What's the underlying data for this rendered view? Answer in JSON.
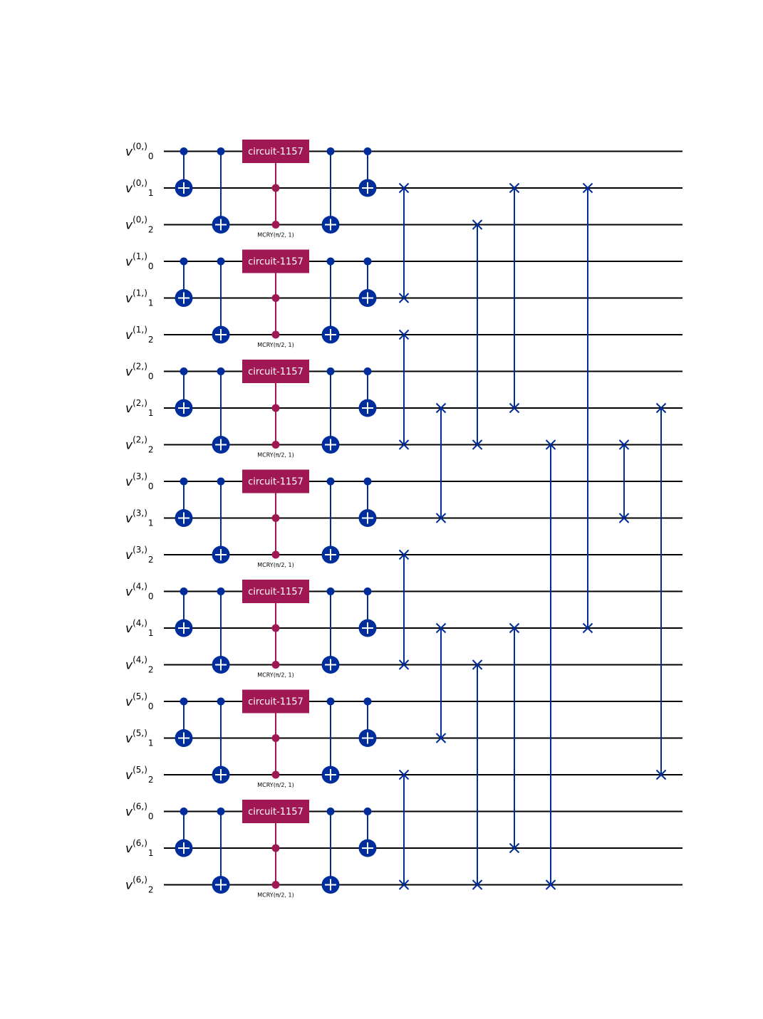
{
  "circuit": {
    "colors": {
      "wire": "#000000",
      "cnot": "#002d9c",
      "swap": "#002d9c",
      "custom_gate": "#9f1853",
      "gate_text": "#ffffff"
    },
    "qubits": [
      {
        "label": "v",
        "sup": "(0,)",
        "sub": "0"
      },
      {
        "label": "v",
        "sup": "(0,)",
        "sub": "1"
      },
      {
        "label": "v",
        "sup": "(0,)",
        "sub": "2"
      },
      {
        "label": "v",
        "sup": "(1,)",
        "sub": "0"
      },
      {
        "label": "v",
        "sup": "(1,)",
        "sub": "1"
      },
      {
        "label": "v",
        "sup": "(1,)",
        "sub": "2"
      },
      {
        "label": "v",
        "sup": "(2,)",
        "sub": "0"
      },
      {
        "label": "v",
        "sup": "(2,)",
        "sub": "1"
      },
      {
        "label": "v",
        "sup": "(2,)",
        "sub": "2"
      },
      {
        "label": "v",
        "sup": "(3,)",
        "sub": "0"
      },
      {
        "label": "v",
        "sup": "(3,)",
        "sub": "1"
      },
      {
        "label": "v",
        "sup": "(3,)",
        "sub": "2"
      },
      {
        "label": "v",
        "sup": "(4,)",
        "sub": "0"
      },
      {
        "label": "v",
        "sup": "(4,)",
        "sub": "1"
      },
      {
        "label": "v",
        "sup": "(4,)",
        "sub": "2"
      },
      {
        "label": "v",
        "sup": "(5,)",
        "sub": "0"
      },
      {
        "label": "v",
        "sup": "(5,)",
        "sub": "1"
      },
      {
        "label": "v",
        "sup": "(5,)",
        "sub": "2"
      },
      {
        "label": "v",
        "sup": "(6,)",
        "sub": "0"
      },
      {
        "label": "v",
        "sup": "(6,)",
        "sub": "1"
      },
      {
        "label": "v",
        "sup": "(6,)",
        "sub": "2"
      }
    ],
    "block_gate_label": "circuit-1157",
    "mcry_label": "MCRY(π/2, 1)",
    "block_count": 7,
    "swap_columns": [
      [
        [
          1,
          4
        ],
        [
          5,
          8
        ],
        [
          11,
          14
        ],
        [
          17,
          20
        ]
      ],
      [
        [
          7,
          10
        ],
        [
          13,
          16
        ]
      ],
      [
        [
          2,
          8
        ],
        [
          14,
          20
        ]
      ],
      [
        [
          1,
          7
        ],
        [
          13,
          19
        ]
      ],
      [
        [
          8,
          20
        ]
      ],
      [
        [
          1,
          13
        ]
      ],
      [
        [
          8,
          10
        ]
      ],
      [
        [
          7,
          17
        ]
      ]
    ]
  }
}
